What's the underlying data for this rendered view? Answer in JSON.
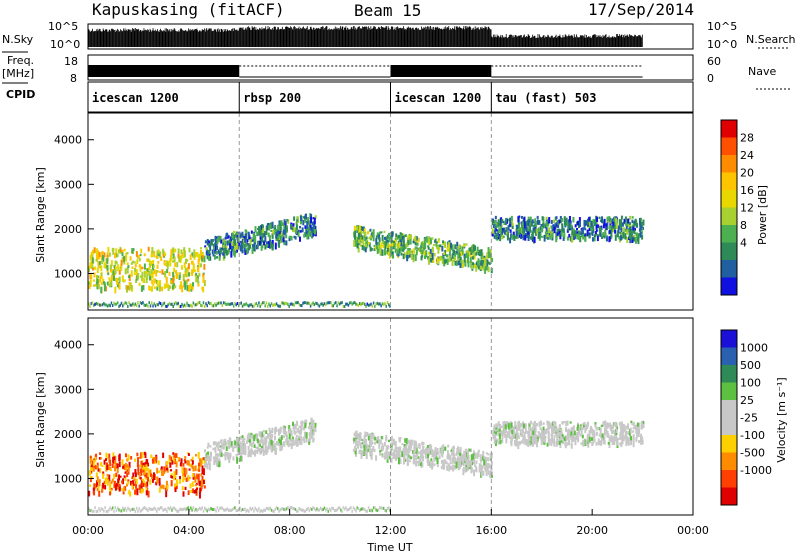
{
  "header": {
    "station": "Kapuskasing (fitACF)",
    "beam": "Beam 15",
    "date": "17/Sep/2014"
  },
  "left_labels": {
    "nsky": "N.Sky",
    "freq": "Freq.",
    "freq_unit": "[MHz]",
    "cpid": "CPID"
  },
  "right_labels": {
    "nsearch": "N.Search",
    "nave": "Nave"
  },
  "noise_axis_left": [
    "10^5",
    "10^0"
  ],
  "noise_axis_right": [
    "10^5",
    "10^0"
  ],
  "freq_axis_left": [
    "18",
    "8"
  ],
  "freq_axis_right": [
    "60",
    "0"
  ],
  "cpid_segments": [
    {
      "label": "icescan 1200",
      "start": 0,
      "end": 6
    },
    {
      "label": "rbsp 200",
      "start": 6,
      "end": 12
    },
    {
      "label": "icescan 1200",
      "start": 12,
      "end": 16
    },
    {
      "label": "tau (fast) 503",
      "start": 16,
      "end": 24
    }
  ],
  "time_axis": {
    "label": "Time UT",
    "ticks": [
      "00:00",
      "04:00",
      "08:00",
      "12:00",
      "16:00",
      "20:00",
      "00:00"
    ]
  },
  "range_axis": {
    "label": "Slant Range [km]",
    "ticks": [
      "1000",
      "2000",
      "3000",
      "4000"
    ]
  },
  "power_colorbar": {
    "label": "Power [dB]",
    "ticks": [
      "28",
      "24",
      "20",
      "16",
      "12",
      "8",
      "4"
    ],
    "colors": [
      "#e00000",
      "#ff5000",
      "#ff8c00",
      "#ffc400",
      "#e8d800",
      "#a8d030",
      "#4caf50",
      "#2e8b57",
      "#2060a0",
      "#1010e0"
    ]
  },
  "velocity_colorbar": {
    "label": "Velocity [m s⁻¹]",
    "ticks": [
      "1000",
      "500",
      "100",
      "25",
      "-25",
      "-100",
      "-500",
      "-1000"
    ],
    "colors": [
      "#1a10d8",
      "#2a60b0",
      "#2e8b57",
      "#5cc040",
      "#c8c8c8",
      "#c8c8c8",
      "#ffd000",
      "#ff8c00",
      "#ff4000",
      "#e00000"
    ]
  },
  "chart_data": {
    "type": "heatmap",
    "title": "Kapuskasing (fitACF)",
    "xlabel": "Time UT",
    "ylabel": "Slant Range [km]",
    "x_range_hours": [
      0,
      24
    ],
    "y_range_km": [
      180,
      4600
    ],
    "panels": [
      {
        "name": "Power",
        "unit": "dB",
        "range": [
          0,
          30
        ]
      },
      {
        "name": "Velocity",
        "unit": "m s⁻¹",
        "range": [
          -1000,
          1000
        ]
      }
    ],
    "echo_regions": [
      {
        "hours": [
          0,
          4.6
        ],
        "range_km": [
          700,
          1600
        ],
        "power_db": 16,
        "velocity": -400
      },
      {
        "hours": [
          4.6,
          9.0
        ],
        "range_km": [
          1300,
          2500
        ],
        "power_db": 6,
        "velocity": 0
      },
      {
        "hours": [
          10.5,
          16
        ],
        "range_km": [
          1100,
          2100
        ],
        "power_db": 10,
        "velocity": 0
      },
      {
        "hours": [
          16,
          22
        ],
        "range_km": [
          1800,
          2300
        ],
        "power_db": 6,
        "velocity": 0
      }
    ],
    "data_end_hour": 22
  }
}
